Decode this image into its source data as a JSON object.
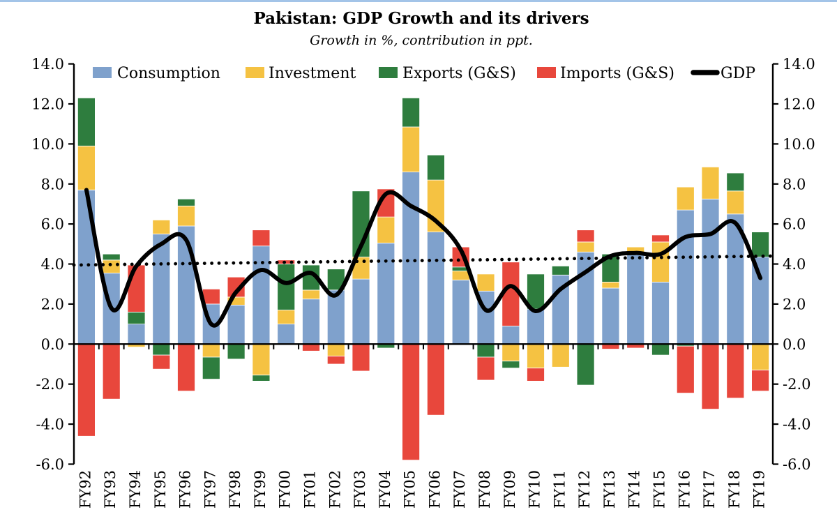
{
  "title": "Pakistan: GDP Growth and its drivers",
  "subtitle": "Growth in %, contribution in ppt.",
  "accent_colors": {
    "top_border": "#A3C4E8"
  },
  "chart_data": {
    "type": "bar",
    "subtype": "stacked-bar-with-line",
    "title": "Pakistan: GDP Growth and its drivers",
    "subtitle": "Growth in %, contribution in ppt.",
    "categories": [
      "FY92",
      "FY93",
      "FY94",
      "FY95",
      "FY96",
      "FY97",
      "FY98",
      "FY99",
      "FY00",
      "FY01",
      "FY02",
      "FY03",
      "FY04",
      "FY05",
      "FY06",
      "FY07",
      "FY08",
      "FY09",
      "FY10",
      "FY11",
      "FY12",
      "FY13",
      "FY14",
      "FY15",
      "FY16",
      "FY17",
      "FY18",
      "FY19"
    ],
    "series": [
      {
        "name": "Consumption",
        "type": "bar",
        "color": "#7FA1CC",
        "values": [
          7.7,
          3.55,
          1.0,
          5.5,
          5.9,
          2.0,
          1.95,
          4.9,
          1.0,
          2.25,
          2.7,
          3.25,
          5.05,
          8.6,
          5.6,
          3.2,
          2.65,
          0.9,
          1.75,
          3.45,
          4.6,
          2.8,
          4.55,
          3.1,
          6.7,
          7.25,
          6.5,
          4.35
        ]
      },
      {
        "name": "Investment",
        "type": "bar",
        "color": "#F5C242",
        "values": [
          2.2,
          0.65,
          -0.15,
          0.7,
          1.0,
          -0.65,
          0.4,
          -1.55,
          0.7,
          0.45,
          -0.6,
          1.1,
          1.3,
          2.25,
          2.6,
          0.45,
          0.85,
          -0.85,
          -1.2,
          -1.15,
          0.5,
          0.3,
          0.3,
          2.0,
          1.15,
          1.6,
          1.15,
          -1.3
        ]
      },
      {
        "name": "Exports (G&S)",
        "type": "bar",
        "color": "#2E7D3E",
        "values": [
          2.4,
          0.3,
          0.6,
          -0.55,
          0.35,
          -1.1,
          -0.75,
          -0.3,
          2.3,
          1.25,
          1.05,
          3.3,
          -0.2,
          1.45,
          1.25,
          0.2,
          -0.65,
          -0.35,
          1.75,
          0.45,
          -2.05,
          1.4,
          0,
          -0.55,
          -0.1,
          0,
          0.9,
          1.25
        ]
      },
      {
        "name": "Imports (G&S)",
        "type": "bar",
        "color": "#E8473C",
        "values": [
          -4.6,
          -2.75,
          2.35,
          -0.7,
          -2.35,
          0.75,
          1.0,
          0.8,
          0.2,
          -0.35,
          -0.4,
          -1.35,
          1.4,
          -5.8,
          -3.55,
          1.0,
          -1.15,
          3.2,
          -0.65,
          0,
          0.6,
          -0.25,
          -0.2,
          0.35,
          -2.35,
          -3.25,
          -2.7,
          -1.05
        ]
      },
      {
        "name": "GDP",
        "type": "line",
        "color": "#000000",
        "values": [
          7.7,
          1.8,
          3.9,
          5.0,
          5.2,
          1.0,
          2.6,
          3.7,
          3.05,
          3.55,
          2.45,
          4.9,
          7.5,
          6.9,
          6.15,
          4.7,
          1.7,
          2.9,
          1.65,
          2.75,
          3.6,
          4.4,
          4.55,
          4.5,
          5.35,
          5.5,
          6.05,
          3.3
        ]
      }
    ],
    "trendline": {
      "style": "dotted",
      "color": "#000000",
      "start_value": 3.95,
      "end_value": 4.4
    },
    "ylim": [
      -6,
      14
    ],
    "ytick_step": 2,
    "ytick_format": "one_decimal",
    "y_axis_sides": "both",
    "legend_position": "top",
    "grid": false
  }
}
